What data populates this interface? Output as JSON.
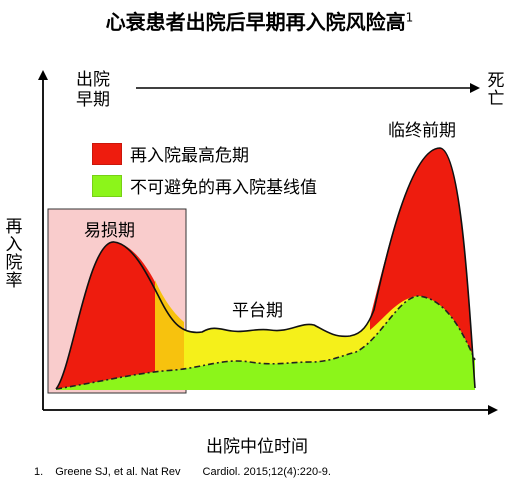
{
  "title": "心衰患者出院后早期再入院风险高",
  "title_sup": "1",
  "axis": {
    "y_label": "再入院率",
    "x_label": "出院中位时间",
    "start_label": "出院早期",
    "end_label": "死亡"
  },
  "phases": {
    "vulnerable": "易损期",
    "plateau": "平台期",
    "terminal": "临终前期"
  },
  "legend": [
    {
      "label": "再入院最高危期",
      "color": "#ee1c0e"
    },
    {
      "label": "不可避免的再入院基线值",
      "color": "#8cf51a"
    }
  ],
  "colors": {
    "red": "#ee1c0e",
    "yellow": "#f5f01a",
    "orange": "#f7c20e",
    "green": "#8cf51a",
    "pink_box": "#f9cccc"
  },
  "reference": {
    "number": "1.",
    "text_a": "Greene SJ, et al. Nat Rev",
    "text_b": "Cardiol. 2015;12(4):220-9."
  }
}
